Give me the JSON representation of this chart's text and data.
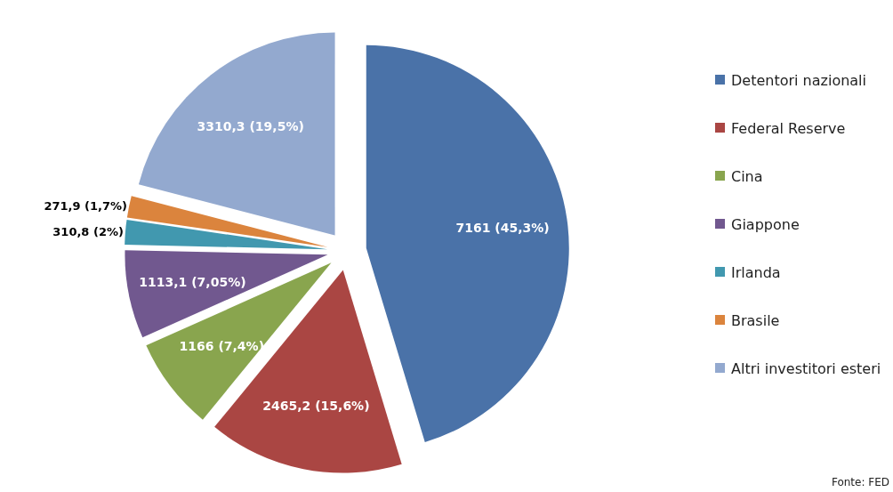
{
  "chart_data": {
    "type": "pie",
    "categories": [
      "Detentori nazionali",
      "Federal Reserve",
      "Cina",
      "Giappone",
      "Irlanda",
      "Brasile",
      "Altri investitori esteri"
    ],
    "values": [
      7161,
      2465.2,
      1166,
      1113.1,
      310.8,
      271.9,
      3310.3
    ],
    "value_labels": [
      "7161 (45,3%)",
      "2465,2 (15,6%)",
      "1166 (7,4%)",
      "1113,1 (7,05%)",
      "310,8 (2%)",
      "271,9 (1,7%)",
      "3310,3 (19,5%)"
    ],
    "colors": [
      "#4a72a8",
      "#aa4643",
      "#89a54e",
      "#71588f",
      "#4198af",
      "#db843d",
      "#93a9cf"
    ],
    "legend": "right",
    "annotations": [
      "Fonte: FED"
    ]
  }
}
